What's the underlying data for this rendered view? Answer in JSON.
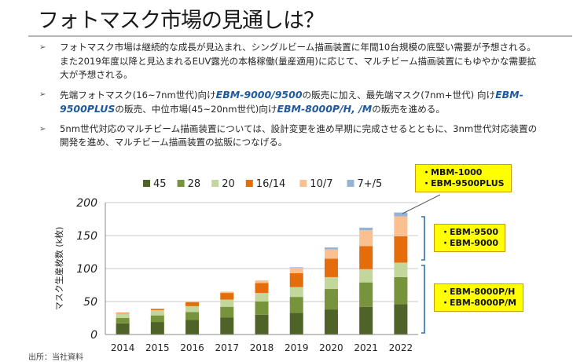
{
  "page": {
    "title": "フォトマスク市場の見通しは？",
    "source_note": "出所：当社資料"
  },
  "bullets": [
    {
      "parts": [
        {
          "text": "フォトマスク市場は継続的な成長が見込まれ、シングルビーム描画装置に年間10台規模の底堅い需要が予想される。また2019年度以降と見込まれるEUV露光の本格稼働(量産適用)に応じて、マルチビーム描画装置にもゆやかな需要拡大が予想される。",
          "em": false
        }
      ]
    },
    {
      "parts": [
        {
          "text": "先端フォトマスク(16~7nm世代)向け",
          "em": false
        },
        {
          "text": "EBM-9000/9500",
          "em": true
        },
        {
          "text": "の販売に加え、最先端マスク(7nm+世代) 向け",
          "em": false
        },
        {
          "text": "EBM-9500PLUS",
          "em": true
        },
        {
          "text": "の販売、中位市場(45~20nm世代)向け",
          "em": false
        },
        {
          "text": "EBM-8000P/H, /M",
          "em": true
        },
        {
          "text": "の販売を進める。",
          "em": false
        }
      ]
    },
    {
      "parts": [
        {
          "text": "5nm世代対応のマルチビーム描画装置については、設計変更を進め早期に完成させるとともに、3nm世代対応装置の開発を進め、マルチビーム描画装置の拡販につなげる。",
          "em": false
        }
      ]
    }
  ],
  "callouts": [
    {
      "lines": "・MBM-1000\n・EBM-9500PLUS"
    },
    {
      "lines": "・EBM-9500\n・EBM-9000"
    },
    {
      "lines": "・EBM-8000P/H\n・EBM-8000P/M"
    }
  ],
  "chart_data": {
    "type": "bar",
    "stacked": true,
    "ylabel": "マスク生産枚数 (k枚)",
    "ylim": [
      0,
      200
    ],
    "yticks": [
      0,
      50,
      100,
      150,
      200
    ],
    "grid": true,
    "legend_position": "top",
    "categories": [
      "2014",
      "2015",
      "2016",
      "2017",
      "2018",
      "2019",
      "2020",
      "2021",
      "2022"
    ],
    "series": [
      {
        "name": "45",
        "color": "#4f6228",
        "values": [
          17,
          19,
          22,
          26,
          30,
          33,
          38,
          42,
          46
        ]
      },
      {
        "name": "28",
        "color": "#77933c",
        "values": [
          8,
          10,
          12,
          16,
          20,
          24,
          31,
          37,
          41
        ]
      },
      {
        "name": "20",
        "color": "#c3d69b",
        "values": [
          7,
          8,
          9,
          11,
          13,
          15,
          18,
          20,
          22
        ]
      },
      {
        "name": "16/14",
        "color": "#e46c0a",
        "values": [
          1,
          2,
          6,
          10,
          15,
          21,
          28,
          35,
          40
        ]
      },
      {
        "name": "10/7",
        "color": "#fac090",
        "values": [
          0,
          0,
          1,
          2,
          4,
          8,
          14,
          24,
          30
        ]
      },
      {
        "name": "7+/5",
        "color": "#95b3d7",
        "values": [
          0,
          0,
          0,
          0,
          0,
          1,
          3,
          4,
          6
        ]
      }
    ]
  }
}
